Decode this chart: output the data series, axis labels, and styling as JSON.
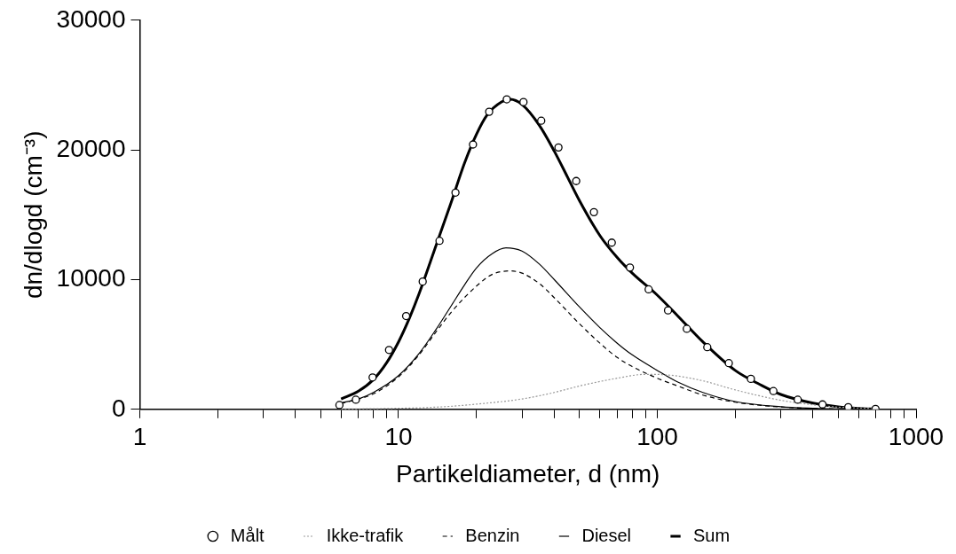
{
  "chart_data": {
    "type": "line",
    "xlabel": "Partikeldiameter, d (nm)",
    "ylabel": "dn/dlogd (cm⁻³)",
    "log": "x",
    "grid": false,
    "legend": "bottom",
    "xlim": [
      1,
      1000
    ],
    "ylim": [
      0,
      30000
    ],
    "xticks": [
      1,
      {
        "value": 2,
        "label": null
      },
      {
        "value": 3,
        "label": null
      },
      {
        "value": 4,
        "label": null
      },
      {
        "value": 5,
        "label": null
      },
      {
        "value": 6,
        "label": null
      },
      {
        "value": 7,
        "label": null
      },
      {
        "value": 8,
        "label": null
      },
      {
        "value": 9,
        "label": null
      },
      10,
      {
        "value": 20,
        "label": null
      },
      {
        "value": 30,
        "label": null
      },
      {
        "value": 40,
        "label": null
      },
      {
        "value": 50,
        "label": null
      },
      {
        "value": 60,
        "label": null
      },
      {
        "value": 70,
        "label": null
      },
      {
        "value": 80,
        "label": null
      },
      {
        "value": 90,
        "label": null
      },
      100,
      {
        "value": 200,
        "label": null
      },
      {
        "value": 300,
        "label": null
      },
      {
        "value": 400,
        "label": null
      },
      {
        "value": 500,
        "label": null
      },
      {
        "value": 600,
        "label": null
      },
      {
        "value": 700,
        "label": null
      },
      {
        "value": 800,
        "label": null
      },
      {
        "value": 900,
        "label": null
      },
      1000
    ],
    "yticks": [
      0,
      10000,
      20000,
      30000
    ],
    "series": [
      {
        "name": "Målt",
        "type": "scatter",
        "marker": "circle",
        "color": "#000000",
        "x": [
          5.91,
          6.84,
          7.94,
          9.19,
          10.7,
          12.4,
          14.4,
          16.6,
          19.4,
          22.4,
          26.2,
          30.4,
          35.6,
          41.5,
          48.6,
          56.9,
          66.7,
          78.4,
          92.6,
          110,
          130,
          156,
          189,
          230,
          281,
          349,
          435,
          547,
          697
        ],
        "values": [
          330,
          740,
          2460,
          4580,
          7190,
          9850,
          12990,
          16710,
          20420,
          22940,
          23900,
          23690,
          22250,
          20190,
          17600,
          15200,
          12850,
          10930,
          9250,
          7630,
          6210,
          4790,
          3560,
          2350,
          1410,
          740,
          380,
          170,
          30
        ]
      },
      {
        "name": "Ikke-trafik",
        "line_style": "dotted",
        "color": "#999999",
        "x": [
          6,
          10,
          15,
          20,
          30,
          40,
          50,
          70,
          90,
          110,
          150,
          200,
          300,
          400,
          500,
          700
        ],
        "values": [
          20,
          80,
          200,
          400,
          800,
          1300,
          1800,
          2400,
          2700,
          2650,
          2200,
          1500,
          700,
          350,
          170,
          60
        ]
      },
      {
        "name": "Benzin",
        "line_style": "dashed",
        "color": "#000000",
        "x": [
          6,
          8,
          10,
          12,
          14,
          16,
          20,
          23,
          27,
          30,
          35,
          40,
          50,
          60,
          70,
          80,
          100,
          120,
          150,
          200,
          300,
          500,
          700
        ],
        "values": [
          450,
          1200,
          2500,
          4200,
          6000,
          7500,
          9500,
          10400,
          10670,
          10500,
          9700,
          8600,
          6600,
          5100,
          4000,
          3300,
          2400,
          1800,
          1100,
          550,
          180,
          30,
          0
        ]
      },
      {
        "name": "Diesel",
        "line_style": "solid",
        "color": "#000000",
        "x": [
          6,
          7,
          8,
          10,
          12,
          14,
          16,
          18,
          20,
          23,
          26,
          30,
          35,
          40,
          50,
          60,
          70,
          80,
          100,
          120,
          150,
          200,
          300,
          400,
          500,
          700
        ],
        "values": [
          500,
          800,
          1300,
          2600,
          4300,
          6200,
          8000,
          9600,
          10900,
          12000,
          12450,
          12200,
          11200,
          10000,
          7900,
          6300,
          5100,
          4200,
          3000,
          2100,
          1300,
          600,
          200,
          80,
          30,
          0
        ]
      },
      {
        "name": "Sum",
        "line_style": "solid",
        "color": "#000000",
        "x": [
          6,
          7,
          8,
          9,
          10,
          11,
          12,
          14,
          16,
          18,
          20,
          22,
          25,
          27,
          30,
          35,
          40,
          45,
          50,
          60,
          70,
          80,
          100,
          120,
          150,
          200,
          250,
          300,
          400,
          500,
          600,
          700
        ],
        "values": [
          800,
          1400,
          2300,
          3600,
          5200,
          7000,
          8900,
          12700,
          16000,
          19000,
          21200,
          22700,
          23700,
          23900,
          23500,
          21900,
          19900,
          17900,
          16100,
          13400,
          11700,
          10500,
          8800,
          7200,
          5200,
          3000,
          1900,
          1150,
          480,
          200,
          80,
          30
        ]
      }
    ]
  }
}
